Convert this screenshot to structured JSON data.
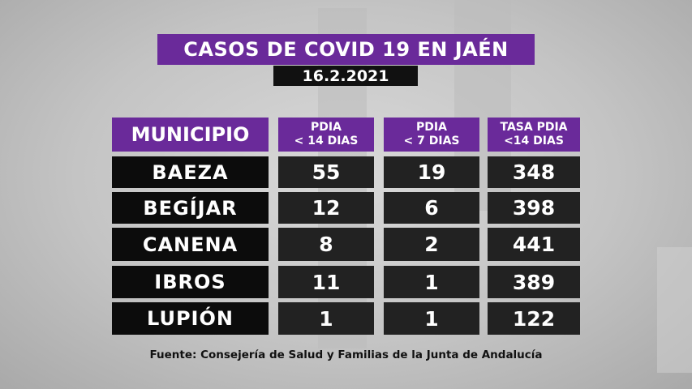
{
  "title": "CASOS DE COVID 19 EN JAÉN",
  "date": "16.2.2021",
  "headers": {
    "municipio": "MUNICIPIO",
    "pdia14_l1": "PDIA",
    "pdia14_l2": "< 14 DIAS",
    "pdia7_l1": "PDIA",
    "pdia7_l2": "< 7 DIAS",
    "tasa_l1": "TASA PDIA",
    "tasa_l2": "<14 DIAS"
  },
  "rows": [
    {
      "municipio": "BAEZA",
      "pdia14": "55",
      "pdia7": "19",
      "tasa": "348"
    },
    {
      "municipio": "BEGÍJAR",
      "pdia14": "12",
      "pdia7": "6",
      "tasa": "398"
    },
    {
      "municipio": "CANENA",
      "pdia14": "8",
      "pdia7": "2",
      "tasa": "441"
    },
    {
      "municipio": "IBROS",
      "pdia14": "11",
      "pdia7": "1",
      "tasa": "389"
    },
    {
      "municipio": "LUPIÓN",
      "pdia14": "1",
      "pdia7": "1",
      "tasa": "122"
    }
  ],
  "source": "Fuente: Consejería de Salud y Familias de la Junta de Andalucía",
  "colors": {
    "header_purple": "#6a2a9a",
    "name_cell": "#0c0c0c",
    "value_cell": "#222222"
  }
}
